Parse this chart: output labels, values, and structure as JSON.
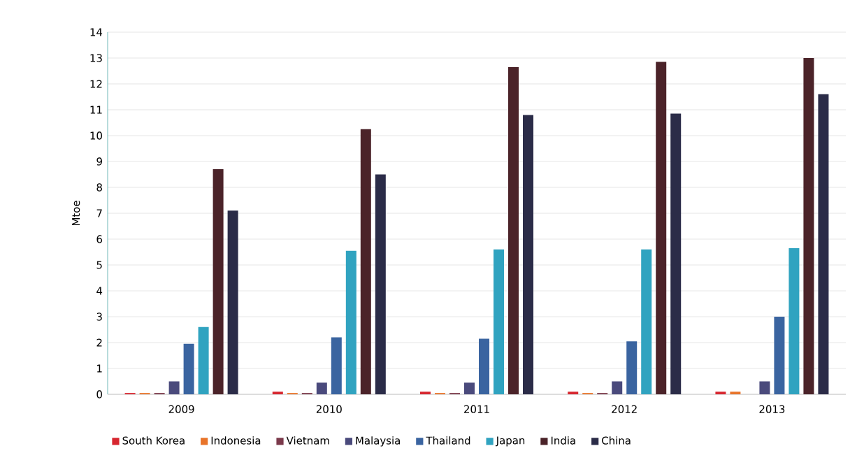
{
  "chart_data": {
    "type": "bar",
    "ylabel": "Mtoe",
    "categories": [
      "2009",
      "2010",
      "2011",
      "2012",
      "2013"
    ],
    "series": [
      {
        "name": "South Korea",
        "color": "#d7262f",
        "values": [
          0.05,
          0.1,
          0.1,
          0.1,
          0.1
        ]
      },
      {
        "name": "Indonesia",
        "color": "#e8742a",
        "values": [
          0.05,
          0.05,
          0.05,
          0.05,
          0.1
        ]
      },
      {
        "name": "Vietnam",
        "color": "#7b3a4b",
        "values": [
          0.05,
          0.05,
          0.05,
          0.05,
          0
        ]
      },
      {
        "name": "Malaysia",
        "color": "#4a4a7c",
        "values": [
          0.5,
          0.45,
          0.45,
          0.5,
          0.5
        ]
      },
      {
        "name": "Thailand",
        "color": "#3a64a0",
        "values": [
          1.95,
          2.2,
          2.15,
          2.05,
          3.0
        ]
      },
      {
        "name": "Japan",
        "color": "#30a3c0",
        "values": [
          2.6,
          5.55,
          5.6,
          5.6,
          5.65
        ]
      },
      {
        "name": "India",
        "color": "#4b2329",
        "values": [
          8.7,
          10.25,
          12.65,
          12.85,
          13.0
        ]
      },
      {
        "name": "China",
        "color": "#2b2c48",
        "values": [
          7.1,
          8.5,
          10.8,
          10.85,
          11.6
        ]
      }
    ],
    "ylim": [
      0,
      14
    ],
    "yticks": [
      0,
      1,
      2,
      3,
      4,
      5,
      6,
      7,
      8,
      9,
      10,
      11,
      12,
      13,
      14
    ],
    "grid": "y",
    "legend": "bottom"
  }
}
